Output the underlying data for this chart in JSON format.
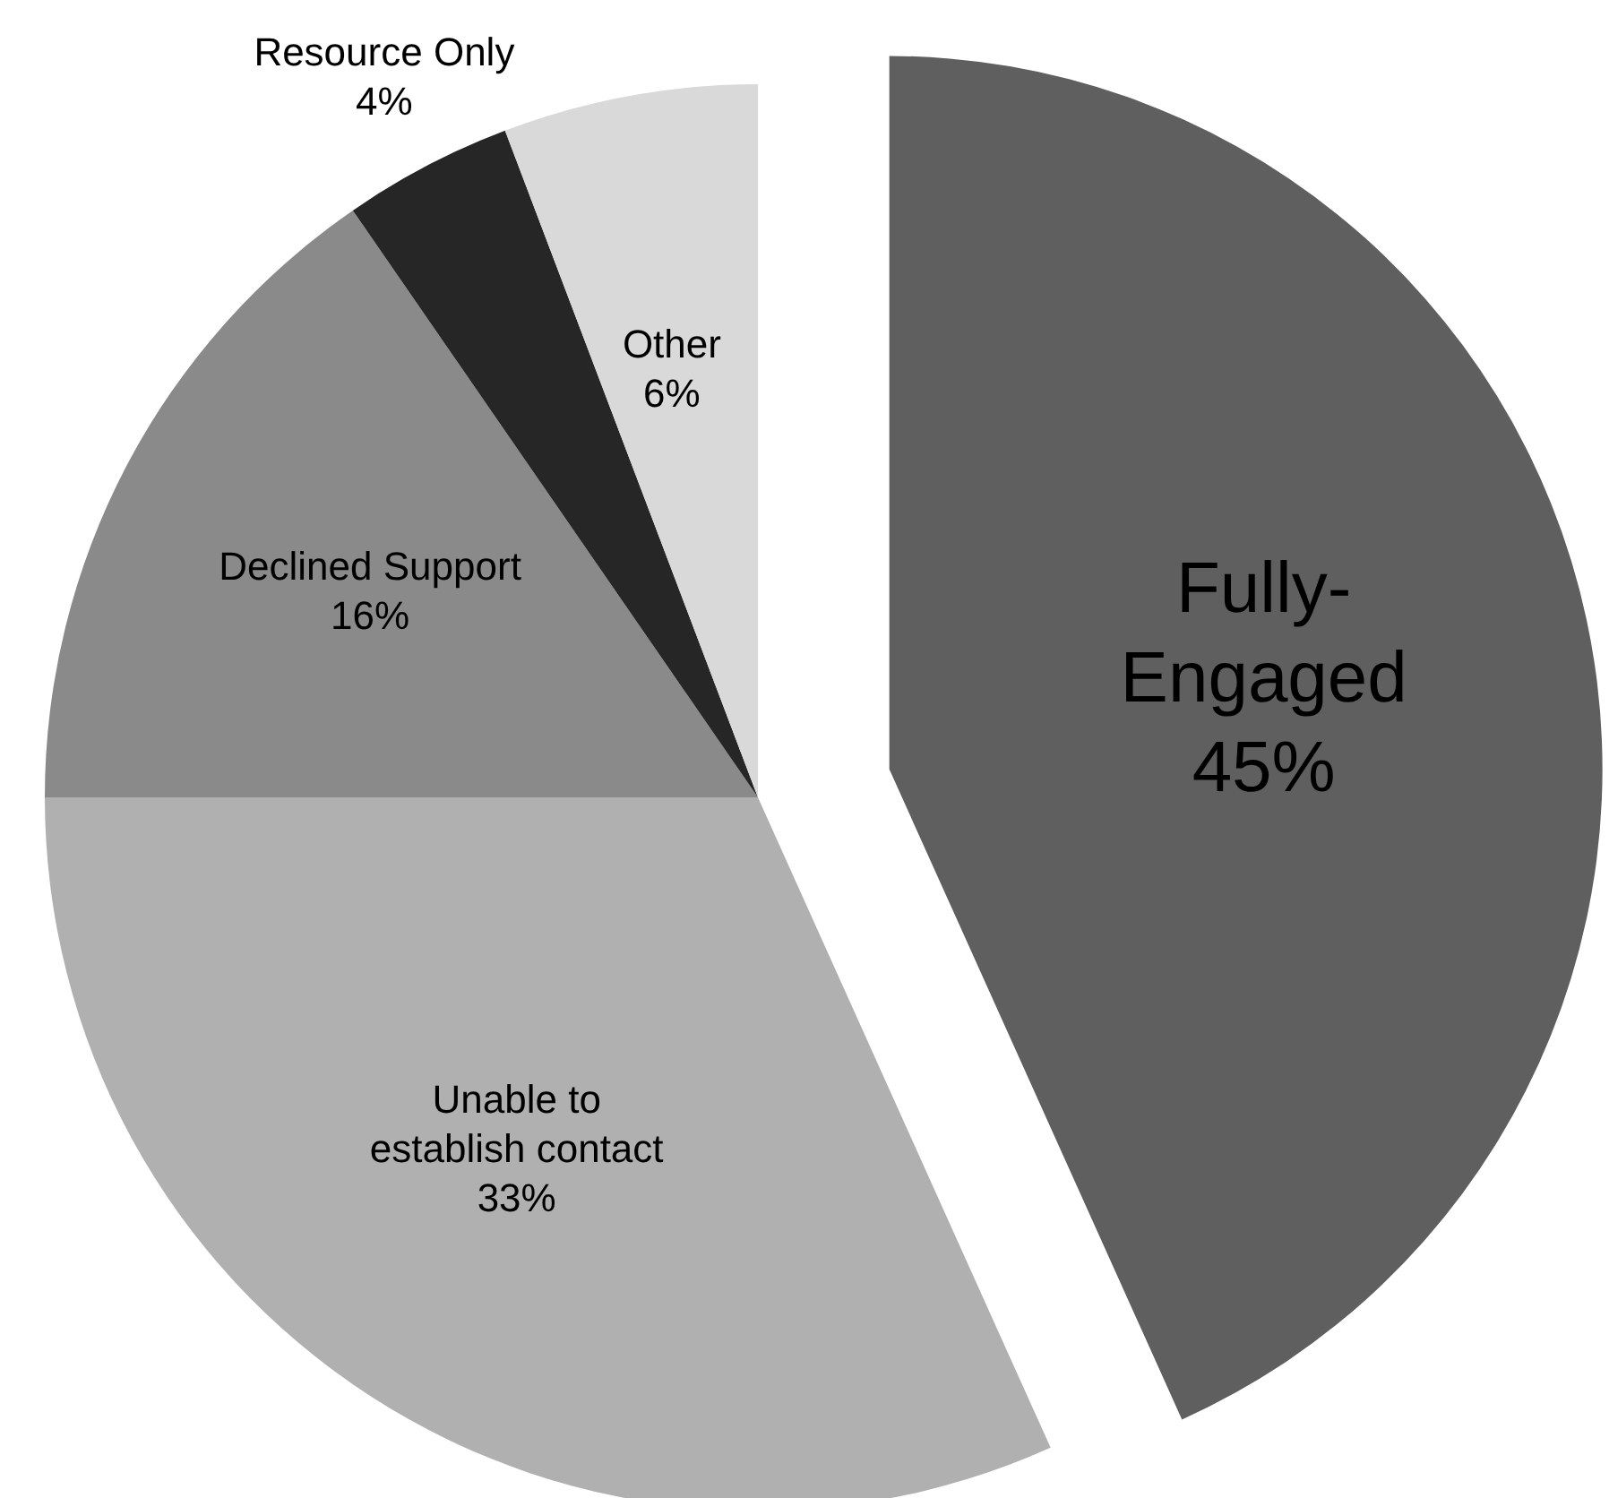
{
  "chart_data": {
    "type": "pie",
    "categories": [
      "Fully-Engaged",
      "Unable to establish contact",
      "Declined Support",
      "Resource Only",
      "Other"
    ],
    "values": [
      45,
      33,
      16,
      4,
      6
    ],
    "colors": [
      "#5f5f5f",
      "#b0b0b0",
      "#8a8a8a",
      "#262626",
      "#d9d9d9"
    ],
    "value_labels": [
      "45%",
      "33%",
      "16%",
      "4%",
      "6%"
    ],
    "legend": false
  }
}
